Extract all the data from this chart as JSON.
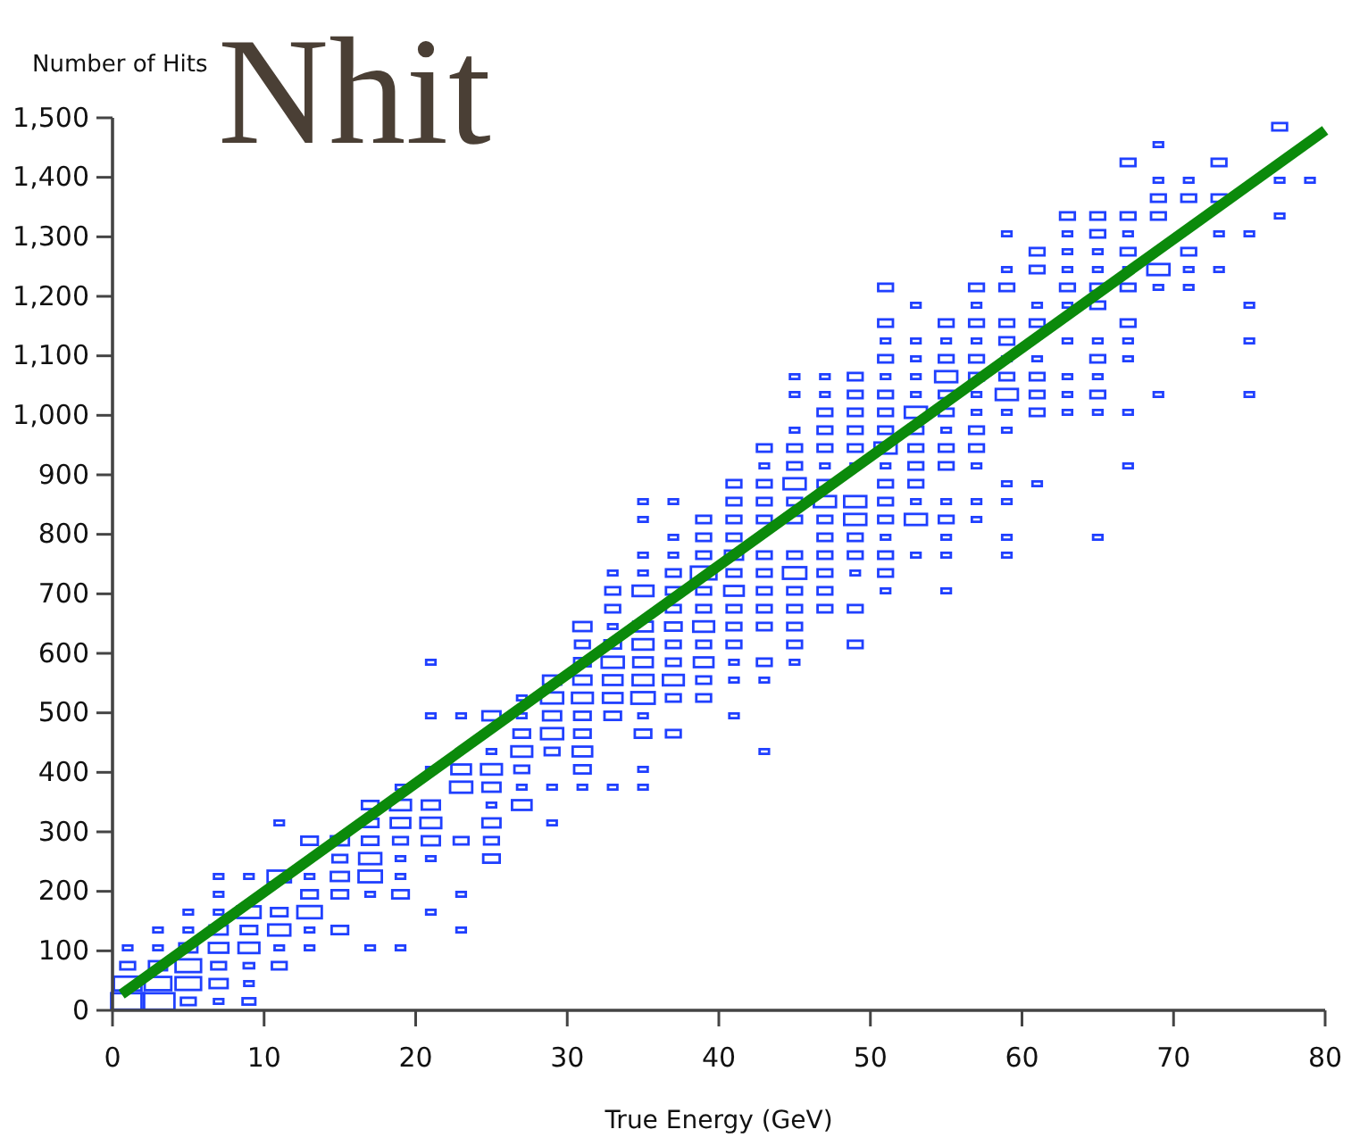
{
  "chart_data": {
    "type": "bubble",
    "title": "Nhit",
    "xlabel": "True Energy (GeV)",
    "ylabel": "Number of Hits",
    "marker": "square",
    "xlim": [
      0,
      80
    ],
    "xticks": [
      0,
      10,
      20,
      30,
      40,
      50,
      60,
      70,
      80
    ],
    "ylim": [
      0,
      1500
    ],
    "yticks": [
      0,
      100,
      200,
      300,
      400,
      500,
      600,
      700,
      800,
      900,
      {
        "value": 1000,
        "label": "1,000"
      },
      {
        "value": 1100,
        "label": "1,100"
      },
      {
        "value": 1200,
        "label": "1,200"
      },
      {
        "value": 1300,
        "label": "1,300"
      },
      {
        "value": 1400,
        "label": "1,400"
      },
      {
        "value": 1500,
        "label": "1,500"
      }
    ],
    "grid": false,
    "series": [
      {
        "color": "#2040ff",
        "x": [
          1,
          1,
          1,
          1
        ],
        "values": [
          15,
          45,
          75,
          105
        ],
        "sizes": [
          1,
          0.7,
          0.2,
          0.08
        ]
      },
      {
        "color": "#2040ff",
        "x": [
          3,
          3,
          3,
          3,
          3
        ],
        "values": [
          15,
          45,
          75,
          105,
          135
        ],
        "sizes": [
          1,
          0.65,
          0.3,
          0.08,
          0.08
        ]
      },
      {
        "color": "#2040ff",
        "x": [
          5,
          5,
          5,
          5,
          5,
          5
        ],
        "values": [
          15,
          45,
          75,
          105,
          135,
          165
        ],
        "sizes": [
          0.2,
          0.6,
          0.6,
          0.3,
          0.08,
          0.08
        ]
      },
      {
        "color": "#2040ff",
        "x": [
          7,
          7,
          7,
          7,
          7,
          7,
          7,
          7
        ],
        "values": [
          15,
          45,
          75,
          105,
          135,
          165,
          195,
          225
        ],
        "sizes": [
          0.08,
          0.3,
          0.2,
          0.35,
          0.3,
          0.08,
          0.08,
          0.08
        ]
      },
      {
        "color": "#2040ff",
        "x": [
          9,
          9,
          9,
          9,
          9,
          9,
          9
        ],
        "values": [
          15,
          45,
          75,
          105,
          135,
          165,
          225
        ],
        "sizes": [
          0.15,
          0.08,
          0.1,
          0.4,
          0.25,
          0.5,
          0.08
        ]
      },
      {
        "color": "#2040ff",
        "x": [
          11,
          11,
          11,
          11,
          11,
          11
        ],
        "values": [
          75,
          105,
          135,
          165,
          225,
          315
        ],
        "sizes": [
          0.2,
          0.08,
          0.45,
          0.25,
          0.5,
          0.08
        ]
      },
      {
        "color": "#2040ff",
        "x": [
          13,
          13,
          13,
          13,
          13,
          13
        ],
        "values": [
          105,
          135,
          165,
          195,
          225,
          285
        ],
        "sizes": [
          0.08,
          0.08,
          0.55,
          0.25,
          0.08,
          0.25
        ]
      },
      {
        "color": "#2040ff",
        "x": [
          15,
          15,
          15,
          15,
          15
        ],
        "values": [
          135,
          195,
          225,
          255,
          285
        ],
        "sizes": [
          0.25,
          0.25,
          0.3,
          0.2,
          0.3
        ]
      },
      {
        "color": "#2040ff",
        "x": [
          17,
          17,
          17,
          17,
          17,
          17,
          17
        ],
        "values": [
          105,
          195,
          225,
          255,
          285,
          315,
          345
        ],
        "sizes": [
          0.08,
          0.08,
          0.5,
          0.45,
          0.25,
          0.25,
          0.25
        ]
      },
      {
        "color": "#2040ff",
        "x": [
          19,
          19,
          19,
          19,
          19,
          19,
          19,
          19
        ],
        "values": [
          105,
          195,
          225,
          255,
          285,
          315,
          345,
          375
        ],
        "sizes": [
          0.08,
          0.25,
          0.08,
          0.08,
          0.2,
          0.35,
          0.4,
          0.08
        ]
      },
      {
        "color": "#2040ff",
        "x": [
          21,
          21,
          21,
          21,
          21,
          21,
          21,
          21
        ],
        "values": [
          165,
          255,
          285,
          315,
          345,
          405,
          495,
          585
        ],
        "sizes": [
          0.08,
          0.08,
          0.3,
          0.4,
          0.3,
          0.08,
          0.08,
          0.08
        ]
      },
      {
        "color": "#2040ff",
        "x": [
          23,
          23,
          23,
          23,
          23,
          23
        ],
        "values": [
          135,
          195,
          285,
          375,
          405,
          495
        ],
        "sizes": [
          0.08,
          0.08,
          0.2,
          0.45,
          0.35,
          0.08
        ]
      },
      {
        "color": "#2040ff",
        "x": [
          25,
          25,
          25,
          25,
          25,
          25,
          25,
          25
        ],
        "values": [
          255,
          285,
          315,
          345,
          375,
          405,
          435,
          495
        ],
        "sizes": [
          0.25,
          0.2,
          0.3,
          0.08,
          0.3,
          0.4,
          0.08,
          0.3
        ]
      },
      {
        "color": "#2040ff",
        "x": [
          27,
          27,
          27,
          27,
          27,
          27,
          27
        ],
        "values": [
          345,
          375,
          405,
          435,
          465,
          495,
          525
        ],
        "sizes": [
          0.35,
          0.08,
          0.2,
          0.4,
          0.25,
          0.08,
          0.08
        ]
      },
      {
        "color": "#2040ff",
        "x": [
          29,
          29,
          29,
          29,
          29,
          29,
          29
        ],
        "values": [
          315,
          375,
          435,
          465,
          495,
          525,
          555
        ],
        "sizes": [
          0.08,
          0.08,
          0.2,
          0.45,
          0.3,
          0.45,
          0.3
        ]
      },
      {
        "color": "#2040ff",
        "x": [
          31,
          31,
          31,
          31,
          31,
          31,
          31,
          31,
          31,
          31
        ],
        "values": [
          375,
          405,
          435,
          465,
          495,
          525,
          555,
          585,
          615,
          645
        ],
        "sizes": [
          0.08,
          0.25,
          0.35,
          0.25,
          0.25,
          0.4,
          0.3,
          0.25,
          0.2,
          0.3
        ]
      },
      {
        "color": "#2040ff",
        "x": [
          33,
          33,
          33,
          33,
          33,
          33,
          33,
          33,
          33,
          33
        ],
        "values": [
          375,
          495,
          525,
          555,
          585,
          615,
          645,
          675,
          705,
          735
        ],
        "sizes": [
          0.08,
          0.25,
          0.35,
          0.35,
          0.45,
          0.25,
          0.08,
          0.2,
          0.2,
          0.08
        ]
      },
      {
        "color": "#2040ff",
        "x": [
          35,
          35,
          35,
          35,
          35,
          35,
          35,
          35,
          35,
          35,
          35,
          35,
          35,
          35
        ],
        "values": [
          375,
          405,
          465,
          495,
          525,
          555,
          585,
          615,
          645,
          705,
          735,
          765,
          825,
          855
        ],
        "sizes": [
          0.08,
          0.08,
          0.25,
          0.08,
          0.5,
          0.4,
          0.35,
          0.4,
          0.35,
          0.4,
          0.08,
          0.08,
          0.08,
          0.08
        ]
      },
      {
        "color": "#2040ff",
        "x": [
          37,
          37,
          37,
          37,
          37,
          37,
          37,
          37,
          37,
          37,
          37,
          37
        ],
        "values": [
          465,
          525,
          555,
          585,
          615,
          645,
          675,
          705,
          735,
          765,
          795,
          855
        ],
        "sizes": [
          0.2,
          0.2,
          0.4,
          0.2,
          0.2,
          0.25,
          0.2,
          0.2,
          0.2,
          0.08,
          0.08,
          0.08
        ]
      },
      {
        "color": "#2040ff",
        "x": [
          39,
          39,
          39,
          39,
          39,
          39,
          39,
          39,
          39,
          39,
          39
        ],
        "values": [
          525,
          555,
          585,
          615,
          645,
          675,
          705,
          735,
          765,
          795,
          825
        ],
        "sizes": [
          0.2,
          0.2,
          0.35,
          0.2,
          0.4,
          0.2,
          0.2,
          0.6,
          0.2,
          0.2,
          0.2
        ]
      },
      {
        "color": "#2040ff",
        "x": [
          41,
          41,
          41,
          41,
          41,
          41,
          41,
          41,
          41,
          41,
          41,
          41,
          41
        ],
        "values": [
          495,
          555,
          585,
          615,
          645,
          675,
          705,
          735,
          765,
          795,
          825,
          855,
          885
        ],
        "sizes": [
          0.08,
          0.08,
          0.08,
          0.2,
          0.2,
          0.2,
          0.35,
          0.2,
          0.3,
          0.2,
          0.2,
          0.2,
          0.2
        ]
      },
      {
        "color": "#2040ff",
        "x": [
          43,
          43,
          43,
          43,
          43,
          43,
          43,
          43,
          43,
          43,
          43,
          43,
          43
        ],
        "values": [
          435,
          555,
          585,
          645,
          675,
          705,
          735,
          765,
          825,
          855,
          885,
          915,
          945
        ],
        "sizes": [
          0.08,
          0.08,
          0.2,
          0.2,
          0.2,
          0.2,
          0.2,
          0.2,
          0.2,
          0.2,
          0.2,
          0.08,
          0.2
        ]
      },
      {
        "color": "#2040ff",
        "x": [
          45,
          45,
          45,
          45,
          45,
          45,
          45,
          45,
          45,
          45,
          45,
          45,
          45,
          45,
          45
        ],
        "values": [
          585,
          615,
          645,
          675,
          705,
          735,
          765,
          825,
          855,
          885,
          915,
          945,
          975,
          1035,
          1065
        ],
        "sizes": [
          0.08,
          0.2,
          0.2,
          0.2,
          0.2,
          0.5,
          0.2,
          0.2,
          0.2,
          0.45,
          0.2,
          0.2,
          0.08,
          0.08,
          0.08
        ]
      },
      {
        "color": "#2040ff",
        "x": [
          47,
          47,
          47,
          47,
          47,
          47,
          47,
          47,
          47,
          47,
          47,
          47,
          47,
          47
        ],
        "values": [
          675,
          705,
          735,
          765,
          795,
          825,
          855,
          885,
          915,
          945,
          975,
          1005,
          1035,
          1065
        ],
        "sizes": [
          0.2,
          0.2,
          0.2,
          0.2,
          0.2,
          0.2,
          0.45,
          0.2,
          0.08,
          0.2,
          0.2,
          0.2,
          0.08,
          0.08
        ]
      },
      {
        "color": "#2040ff",
        "x": [
          49,
          49,
          49,
          49,
          49,
          49,
          49,
          49,
          49,
          49,
          49,
          49,
          49
        ],
        "values": [
          615,
          675,
          735,
          765,
          795,
          825,
          855,
          915,
          945,
          975,
          1005,
          1035,
          1065
        ],
        "sizes": [
          0.2,
          0.2,
          0.08,
          0.2,
          0.2,
          0.45,
          0.45,
          0.08,
          0.2,
          0.2,
          0.2,
          0.2,
          0.2
        ]
      },
      {
        "color": "#2040ff",
        "x": [
          51,
          51,
          51,
          51,
          51,
          51,
          51,
          51,
          51,
          51,
          51,
          51,
          51,
          51,
          51,
          51,
          51
        ],
        "values": [
          705,
          735,
          765,
          795,
          825,
          855,
          885,
          915,
          945,
          975,
          1005,
          1035,
          1065,
          1095,
          1125,
          1155,
          1215
        ],
        "sizes": [
          0.08,
          0.2,
          0.2,
          0.08,
          0.2,
          0.2,
          0.2,
          0.08,
          0.45,
          0.2,
          0.2,
          0.2,
          0.08,
          0.2,
          0.08,
          0.2,
          0.2
        ]
      },
      {
        "color": "#2040ff",
        "x": [
          53,
          53,
          53,
          53,
          53,
          53,
          53,
          53,
          53,
          53,
          53,
          53,
          53
        ],
        "values": [
          765,
          825,
          855,
          885,
          915,
          945,
          975,
          1005,
          1035,
          1065,
          1095,
          1125,
          1185
        ],
        "sizes": [
          0.08,
          0.45,
          0.08,
          0.2,
          0.2,
          0.2,
          0.2,
          0.45,
          0.08,
          0.08,
          0.08,
          0.08,
          0.08
        ]
      },
      {
        "color": "#2040ff",
        "x": [
          55,
          55,
          55,
          55,
          55,
          55,
          55,
          55,
          55,
          55,
          55,
          55,
          55,
          55
        ],
        "values": [
          705,
          765,
          795,
          825,
          855,
          915,
          945,
          975,
          1005,
          1035,
          1065,
          1095,
          1125,
          1155
        ],
        "sizes": [
          0.08,
          0.08,
          0.08,
          0.2,
          0.08,
          0.2,
          0.2,
          0.08,
          0.2,
          0.2,
          0.45,
          0.2,
          0.08,
          0.2
        ]
      },
      {
        "color": "#2040ff",
        "x": [
          57,
          57,
          57,
          57,
          57,
          57,
          57,
          57,
          57,
          57,
          57,
          57,
          57
        ],
        "values": [
          825,
          855,
          915,
          945,
          975,
          1005,
          1035,
          1065,
          1095,
          1125,
          1155,
          1185,
          1215
        ],
        "sizes": [
          0.08,
          0.08,
          0.08,
          0.2,
          0.2,
          0.08,
          0.08,
          0.2,
          0.2,
          0.08,
          0.2,
          0.08,
          0.2
        ]
      },
      {
        "color": "#2040ff",
        "x": [
          59,
          59,
          59,
          59,
          59,
          59,
          59,
          59,
          59,
          59,
          59,
          59,
          59,
          59
        ],
        "values": [
          765,
          795,
          855,
          885,
          975,
          1005,
          1035,
          1065,
          1095,
          1125,
          1155,
          1215,
          1245,
          1305
        ],
        "sizes": [
          0.08,
          0.08,
          0.08,
          0.08,
          0.08,
          0.08,
          0.45,
          0.2,
          0.08,
          0.2,
          0.2,
          0.2,
          0.08,
          0.08
        ]
      },
      {
        "color": "#2040ff",
        "x": [
          61,
          61,
          61,
          61,
          61,
          61,
          61,
          61,
          61
        ],
        "values": [
          885,
          1005,
          1035,
          1065,
          1095,
          1155,
          1185,
          1245,
          1275
        ],
        "sizes": [
          0.08,
          0.2,
          0.2,
          0.2,
          0.08,
          0.2,
          0.08,
          0.2,
          0.2
        ]
      },
      {
        "color": "#2040ff",
        "x": [
          63,
          63,
          63,
          63,
          63,
          63,
          63,
          63,
          63,
          63
        ],
        "values": [
          1005,
          1035,
          1065,
          1125,
          1185,
          1215,
          1245,
          1275,
          1305,
          1335
        ],
        "sizes": [
          0.08,
          0.08,
          0.08,
          0.08,
          0.08,
          0.2,
          0.08,
          0.08,
          0.08,
          0.2
        ]
      },
      {
        "color": "#2040ff",
        "x": [
          65,
          65,
          65,
          65,
          65,
          65,
          65,
          65,
          65,
          65,
          65,
          65
        ],
        "values": [
          795,
          1005,
          1035,
          1065,
          1095,
          1125,
          1185,
          1215,
          1245,
          1275,
          1305,
          1335
        ],
        "sizes": [
          0.08,
          0.08,
          0.2,
          0.08,
          0.2,
          0.08,
          0.2,
          0.2,
          0.08,
          0.08,
          0.2,
          0.2
        ]
      },
      {
        "color": "#2040ff",
        "x": [
          67,
          67,
          67,
          67,
          67,
          67,
          67,
          67,
          67,
          67,
          67
        ],
        "values": [
          915,
          1005,
          1095,
          1125,
          1155,
          1215,
          1245,
          1275,
          1305,
          1335,
          1425
        ],
        "sizes": [
          0.08,
          0.08,
          0.08,
          0.08,
          0.2,
          0.2,
          0.08,
          0.2,
          0.08,
          0.2,
          0.2
        ]
      },
      {
        "color": "#2040ff",
        "x": [
          69,
          69,
          69,
          69,
          69,
          69,
          69
        ],
        "values": [
          1035,
          1215,
          1245,
          1335,
          1365,
          1395,
          1455
        ],
        "sizes": [
          0.08,
          0.08,
          0.45,
          0.2,
          0.2,
          0.08,
          0.08
        ]
      },
      {
        "color": "#2040ff",
        "x": [
          71,
          71,
          71,
          71,
          71
        ],
        "values": [
          1215,
          1245,
          1275,
          1365,
          1395
        ],
        "sizes": [
          0.08,
          0.08,
          0.2,
          0.2,
          0.08
        ]
      },
      {
        "color": "#2040ff",
        "x": [
          73,
          73,
          73,
          73
        ],
        "values": [
          1245,
          1305,
          1365,
          1425
        ],
        "sizes": [
          0.08,
          0.08,
          0.2,
          0.2
        ]
      },
      {
        "color": "#2040ff",
        "x": [
          75,
          75,
          75,
          75
        ],
        "values": [
          1035,
          1125,
          1185,
          1305
        ],
        "sizes": [
          0.08,
          0.08,
          0.08,
          0.08
        ]
      },
      {
        "color": "#2040ff",
        "x": [
          77,
          77,
          77
        ],
        "values": [
          1335,
          1395,
          1485
        ],
        "sizes": [
          0.08,
          0.08,
          0.2
        ]
      },
      {
        "color": "#2040ff",
        "x": [
          79
        ],
        "values": [
          1395
        ],
        "sizes": [
          0.08
        ]
      },
      {
        "type": "line",
        "marker": "none",
        "color": "#0b8a0b",
        "x": [
          0.6,
          80
        ],
        "values": [
          27,
          1479
        ]
      }
    ]
  }
}
